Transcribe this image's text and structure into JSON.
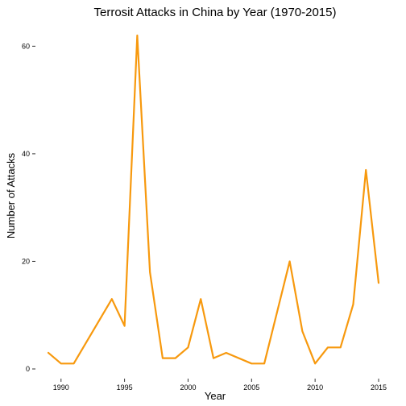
{
  "chart_data": {
    "type": "line",
    "title": "Terrosit Attacks in China by Year (1970-2015)",
    "xlabel": "Year",
    "ylabel": "Number of Attacks",
    "xlim": [
      1989,
      2015
    ],
    "ylim": [
      0,
      62
    ],
    "x_ticks": [
      1990,
      1995,
      2000,
      2005,
      2010,
      2015
    ],
    "y_ticks": [
      0,
      20,
      40,
      60
    ],
    "grid": false,
    "legend": "none",
    "line_color": "#F7990E",
    "series": [
      {
        "x": [
          1989,
          1990,
          1991,
          1994,
          1995,
          1996,
          1997,
          1998,
          1999,
          2000,
          2001,
          2002,
          2003,
          2005,
          2006,
          2008,
          2009,
          2010,
          2011,
          2012,
          2013,
          2014,
          2015
        ],
        "y": [
          3,
          1,
          1,
          13,
          8,
          62,
          18,
          2,
          2,
          4,
          13,
          2,
          3,
          1,
          1,
          20,
          7,
          1,
          4,
          4,
          12,
          37,
          16
        ]
      }
    ]
  }
}
